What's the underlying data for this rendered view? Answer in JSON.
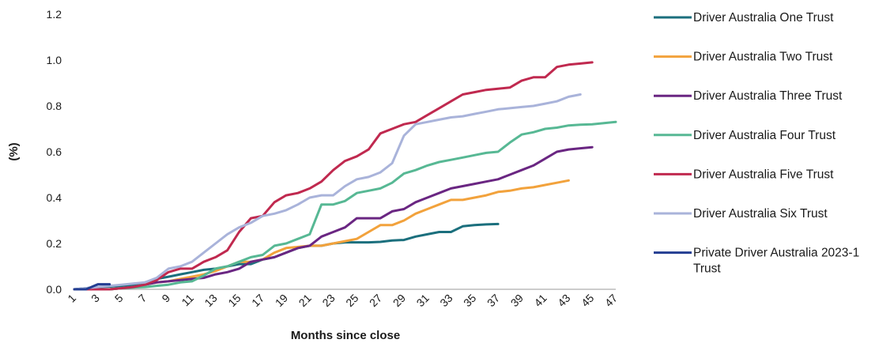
{
  "chart_data": {
    "type": "line",
    "xlabel": "Months since close",
    "ylabel": "(%)",
    "xlim": [
      1,
      47
    ],
    "ylim": [
      0,
      1.2
    ],
    "y_ticks": [
      "0.0",
      "0.2",
      "0.4",
      "0.6",
      "0.8",
      "1.0",
      "1.2"
    ],
    "x_ticks": [
      "1",
      "3",
      "5",
      "7",
      "9",
      "11",
      "13",
      "15",
      "17",
      "19",
      "21",
      "23",
      "25",
      "27",
      "29",
      "31",
      "33",
      "35",
      "37",
      "39",
      "41",
      "43",
      "45",
      "47"
    ],
    "grid": "none",
    "legend_position": "right",
    "series": [
      {
        "name": "Driver Australia One Trust",
        "color": "#1b6f7d",
        "x": [
          1,
          2,
          3,
          4,
          5,
          6,
          7,
          8,
          9,
          10,
          11,
          12,
          13,
          14,
          15,
          16,
          17,
          18,
          19,
          20,
          21,
          22,
          23,
          24,
          25,
          26,
          27,
          28,
          29,
          30,
          31,
          32,
          33,
          34,
          35,
          36,
          37
        ],
        "values": [
          0,
          0.005,
          0.01,
          0.012,
          0.015,
          0.02,
          0.03,
          0.045,
          0.055,
          0.065,
          0.075,
          0.085,
          0.09,
          0.1,
          0.11,
          0.11,
          0.13,
          0.14,
          0.16,
          0.18,
          0.19,
          0.19,
          0.2,
          0.205,
          0.205,
          0.205,
          0.207,
          0.213,
          0.215,
          0.23,
          0.24,
          0.25,
          0.25,
          0.275,
          0.28,
          0.283,
          0.285
        ]
      },
      {
        "name": "Driver Australia Two Trust",
        "color": "#f2a23c",
        "x": [
          1,
          2,
          3,
          4,
          5,
          6,
          7,
          8,
          9,
          10,
          11,
          12,
          13,
          14,
          15,
          16,
          17,
          18,
          19,
          20,
          21,
          22,
          23,
          24,
          25,
          26,
          27,
          28,
          29,
          30,
          31,
          32,
          33,
          34,
          35,
          36,
          37,
          38,
          39,
          40,
          41,
          42,
          43
        ],
        "values": [
          0,
          0,
          0,
          0,
          0.005,
          0.01,
          0.02,
          0.03,
          0.035,
          0.045,
          0.055,
          0.065,
          0.08,
          0.1,
          0.12,
          0.12,
          0.13,
          0.16,
          0.18,
          0.185,
          0.19,
          0.19,
          0.2,
          0.21,
          0.22,
          0.25,
          0.28,
          0.28,
          0.3,
          0.33,
          0.35,
          0.37,
          0.39,
          0.39,
          0.4,
          0.41,
          0.425,
          0.43,
          0.44,
          0.445,
          0.455,
          0.465,
          0.475
        ]
      },
      {
        "name": "Driver Australia Three Trust",
        "color": "#6a2682",
        "x": [
          1,
          2,
          3,
          4,
          5,
          6,
          7,
          8,
          9,
          10,
          11,
          12,
          13,
          14,
          15,
          16,
          17,
          18,
          19,
          20,
          21,
          22,
          23,
          24,
          25,
          26,
          27,
          28,
          29,
          30,
          31,
          32,
          33,
          34,
          35,
          36,
          37,
          38,
          39,
          40,
          41,
          42,
          43,
          44,
          45
        ],
        "values": [
          0,
          0,
          0,
          0,
          0.005,
          0.01,
          0.02,
          0.03,
          0.035,
          0.04,
          0.045,
          0.05,
          0.065,
          0.075,
          0.09,
          0.12,
          0.13,
          0.14,
          0.16,
          0.18,
          0.19,
          0.23,
          0.25,
          0.27,
          0.31,
          0.31,
          0.31,
          0.34,
          0.35,
          0.38,
          0.4,
          0.42,
          0.44,
          0.45,
          0.46,
          0.47,
          0.48,
          0.5,
          0.52,
          0.54,
          0.57,
          0.6,
          0.61,
          0.615,
          0.62
        ]
      },
      {
        "name": "Driver Australia Four Trust",
        "color": "#57b894",
        "x": [
          1,
          2,
          3,
          4,
          5,
          6,
          7,
          8,
          9,
          10,
          11,
          12,
          13,
          14,
          15,
          16,
          17,
          18,
          19,
          20,
          21,
          22,
          23,
          24,
          25,
          26,
          27,
          28,
          29,
          30,
          31,
          32,
          33,
          34,
          35,
          36,
          37,
          38,
          39,
          40,
          41,
          42,
          43,
          44,
          45,
          46,
          47
        ],
        "values": [
          0,
          0,
          0,
          0,
          0.005,
          0.008,
          0.01,
          0.015,
          0.02,
          0.03,
          0.035,
          0.06,
          0.09,
          0.1,
          0.12,
          0.14,
          0.15,
          0.19,
          0.2,
          0.22,
          0.24,
          0.37,
          0.37,
          0.385,
          0.42,
          0.43,
          0.44,
          0.465,
          0.505,
          0.52,
          0.54,
          0.555,
          0.565,
          0.575,
          0.585,
          0.595,
          0.6,
          0.64,
          0.675,
          0.685,
          0.7,
          0.705,
          0.715,
          0.718,
          0.72,
          0.725,
          0.73
        ]
      },
      {
        "name": "Driver Australia Five Trust",
        "color": "#c0294f",
        "x": [
          1,
          2,
          3,
          4,
          5,
          6,
          7,
          8,
          9,
          10,
          11,
          12,
          13,
          14,
          15,
          16,
          17,
          18,
          19,
          20,
          21,
          22,
          23,
          24,
          25,
          26,
          27,
          28,
          29,
          30,
          31,
          32,
          33,
          34,
          35,
          36,
          37,
          38,
          39,
          40,
          41,
          42,
          43,
          44,
          45
        ],
        "values": [
          0,
          0,
          0,
          0,
          0.005,
          0.01,
          0.02,
          0.04,
          0.075,
          0.09,
          0.09,
          0.12,
          0.14,
          0.17,
          0.25,
          0.31,
          0.32,
          0.38,
          0.41,
          0.42,
          0.44,
          0.47,
          0.52,
          0.56,
          0.58,
          0.61,
          0.68,
          0.7,
          0.72,
          0.73,
          0.76,
          0.79,
          0.82,
          0.85,
          0.86,
          0.87,
          0.875,
          0.88,
          0.91,
          0.925,
          0.925,
          0.97,
          0.98,
          0.985,
          0.99
        ]
      },
      {
        "name": "Driver Australia Six Trust",
        "color": "#a9b3da",
        "x": [
          1,
          2,
          3,
          4,
          5,
          6,
          7,
          8,
          9,
          10,
          11,
          12,
          13,
          14,
          15,
          16,
          17,
          18,
          19,
          20,
          21,
          22,
          23,
          24,
          25,
          26,
          27,
          28,
          29,
          30,
          31,
          32,
          33,
          34,
          35,
          36,
          37,
          38,
          39,
          40,
          41,
          42,
          43,
          44
        ],
        "values": [
          0,
          0.005,
          0.01,
          0.015,
          0.02,
          0.025,
          0.03,
          0.05,
          0.09,
          0.1,
          0.12,
          0.16,
          0.2,
          0.24,
          0.27,
          0.29,
          0.32,
          0.33,
          0.345,
          0.37,
          0.4,
          0.41,
          0.41,
          0.45,
          0.48,
          0.49,
          0.51,
          0.55,
          0.67,
          0.72,
          0.73,
          0.74,
          0.75,
          0.755,
          0.765,
          0.775,
          0.785,
          0.79,
          0.795,
          0.8,
          0.81,
          0.82,
          0.84,
          0.85
        ]
      },
      {
        "name": "Private Driver Australia 2023-1 Trust",
        "color": "#233d92",
        "x": [
          1,
          2,
          3,
          4
        ],
        "values": [
          0,
          0,
          0.022,
          0.022
        ]
      }
    ]
  }
}
